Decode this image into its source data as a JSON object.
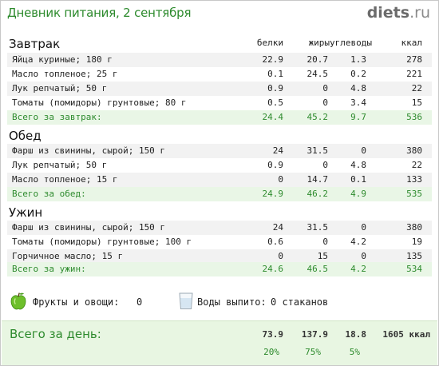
{
  "title": "Дневник питания, 2 сентября",
  "brand": {
    "name": "diets",
    "suffix": ".ru"
  },
  "columns": {
    "protein": "белки",
    "fat": "жиры",
    "carbs": "углеводы",
    "kcal": "ккал"
  },
  "meals": [
    {
      "name": "Завтрак",
      "items": [
        {
          "name": "Яйца куриные; 180 г",
          "protein": "22.9",
          "fat": "20.7",
          "carbs": "1.3",
          "kcal": "278"
        },
        {
          "name": "Масло топленое; 25 г",
          "protein": "0.1",
          "fat": "24.5",
          "carbs": "0.2",
          "kcal": "221"
        },
        {
          "name": "Лук репчатый; 50 г",
          "protein": "0.9",
          "fat": "0",
          "carbs": "4.8",
          "kcal": "22"
        },
        {
          "name": "Томаты (помидоры) грунтовые; 80 г",
          "protein": "0.5",
          "fat": "0",
          "carbs": "3.4",
          "kcal": "15"
        }
      ],
      "total": {
        "name": "Всего за завтрак:",
        "protein": "24.4",
        "fat": "45.2",
        "carbs": "9.7",
        "kcal": "536"
      }
    },
    {
      "name": "Обед",
      "items": [
        {
          "name": "Фарш из свинины, сырой; 150 г",
          "protein": "24",
          "fat": "31.5",
          "carbs": "0",
          "kcal": "380"
        },
        {
          "name": "Лук репчатый; 50 г",
          "protein": "0.9",
          "fat": "0",
          "carbs": "4.8",
          "kcal": "22"
        },
        {
          "name": "Масло топленое; 15 г",
          "protein": "0",
          "fat": "14.7",
          "carbs": "0.1",
          "kcal": "133"
        }
      ],
      "total": {
        "name": "Всего за обед:",
        "protein": "24.9",
        "fat": "46.2",
        "carbs": "4.9",
        "kcal": "535"
      }
    },
    {
      "name": "Ужин",
      "items": [
        {
          "name": "Фарш из свинины, сырой; 150 г",
          "protein": "24",
          "fat": "31.5",
          "carbs": "0",
          "kcal": "380"
        },
        {
          "name": "Томаты (помидоры) грунтовые; 100 г",
          "protein": "0.6",
          "fat": "0",
          "carbs": "4.2",
          "kcal": "19"
        },
        {
          "name": "Горчичное масло; 15 г",
          "protein": "0",
          "fat": "15",
          "carbs": "0",
          "kcal": "135"
        }
      ],
      "total": {
        "name": "Всего за ужин:",
        "protein": "24.6",
        "fat": "46.5",
        "carbs": "4.2",
        "kcal": "534"
      }
    }
  ],
  "extras": {
    "fruits_label": "Фрукты и овощи:",
    "fruits_value": "0",
    "water_label": "Воды выпито:",
    "water_value": "0 стаканов",
    "fruits_icon": "green-apple-icon",
    "water_icon": "water-glass-icon"
  },
  "day_total": {
    "label": "Всего за день:",
    "protein": "73.9",
    "fat": "137.9",
    "carbs": "18.8",
    "kcal": "1605 ккал",
    "protein_pct": "20%",
    "fat_pct": "75%",
    "carbs_pct": "5%"
  },
  "colors": {
    "accent": "#2c8a2c",
    "total_bg": "#e9f6e6",
    "day_bg": "#e8f6e2",
    "stripe": "#f2f2f2"
  }
}
